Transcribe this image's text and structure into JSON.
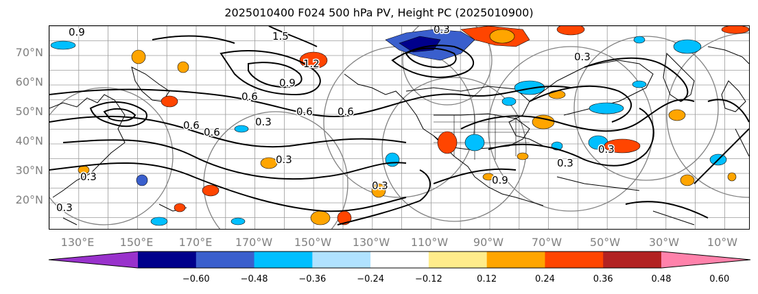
{
  "title": "2025010400 F024 500 hPa PV, Height PC (2025010900)",
  "lat_labels": [
    "70°N",
    "60°N",
    "50°N",
    "40°N",
    "30°N",
    "20°N"
  ],
  "lon_labels": [
    "130°E",
    "150°E",
    "170°E",
    "170°W",
    "150°W",
    "130°W",
    "110°W",
    "90°W",
    "70°W",
    "50°W",
    "30°W",
    "10°W"
  ],
  "colorbar": {
    "ticks": [
      "−0.60",
      "−0.48",
      "−0.36",
      "−0.24",
      "−0.12",
      "0.12",
      "0.24",
      "0.36",
      "0.48",
      "0.60"
    ],
    "colors": [
      "#9932cc",
      "#00008b",
      "#3a5fcd",
      "#00bfff",
      "#b0e2ff",
      "#ffffff",
      "#ffec8b",
      "#ffa500",
      "#ff4500",
      "#b22222",
      "#ff82ab"
    ]
  },
  "contour_labels": [
    "0.9",
    "1.5",
    "0.6",
    "0.9",
    "1.2",
    "0.6",
    "0.3",
    "0.3",
    "0.6",
    "0.6",
    "0.3",
    "0.3",
    "0.3",
    "0.3",
    "0.3",
    "0.9",
    "0.6",
    "0.3",
    "0.3"
  ],
  "colors": {
    "contour": "#000000",
    "circles": "#808080",
    "grid": "#808080",
    "axis_text": "#808080"
  }
}
